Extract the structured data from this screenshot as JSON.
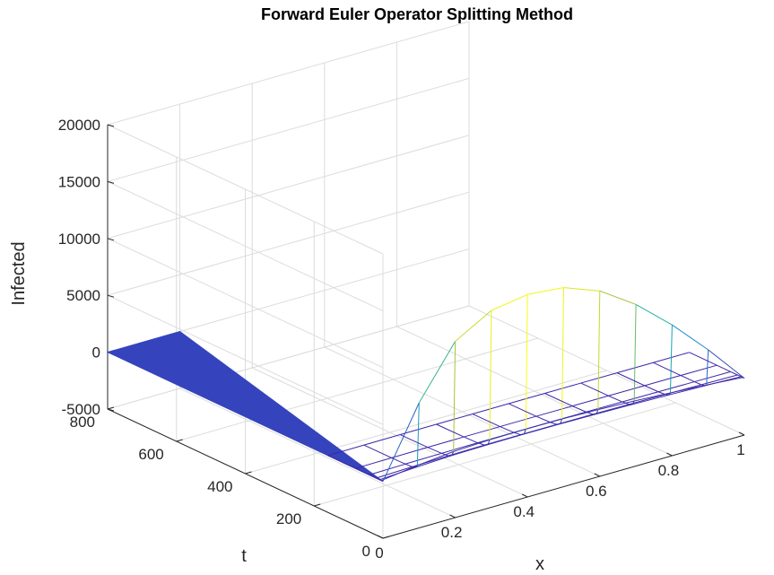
{
  "chart_data": {
    "type": "surface3d",
    "title": "Forward Euler Operator Splitting Method",
    "xlabel": "x",
    "ylabel": "t",
    "zlabel": "Infected",
    "xlim": [
      0,
      1
    ],
    "ylim": [
      0,
      800
    ],
    "zlim": [
      -5000,
      20000
    ],
    "x_ticks": [
      0,
      0.2,
      0.4,
      0.6,
      0.8,
      1
    ],
    "x_tick_labels": [
      "0",
      "0.2",
      "0.4",
      "0.6",
      "0.8",
      "1"
    ],
    "y_ticks": [
      0,
      200,
      400,
      600,
      800
    ],
    "y_tick_labels": [
      "0",
      "200",
      "400",
      "600",
      "800"
    ],
    "z_ticks": [
      -5000,
      0,
      5000,
      10000,
      15000,
      20000
    ],
    "z_tick_labels": [
      "-5000",
      "0",
      "5000",
      "10000",
      "15000",
      "20000"
    ],
    "grid": true,
    "colormap": "parula",
    "flat_region": {
      "description_free": true,
      "corners": [
        {
          "x": 0,
          "t": 0,
          "z": 0
        },
        {
          "x": 0,
          "t": 800,
          "z": 0
        },
        {
          "x": 0.2,
          "t": 800,
          "z": 0
        }
      ],
      "color": "#3544bd"
    },
    "x_grid": [
      0,
      0.1,
      0.2,
      0.3,
      0.4,
      0.5,
      0.6,
      0.7,
      0.8,
      0.9,
      1.0
    ],
    "t_rows": [
      0,
      5,
      10,
      20,
      40,
      80,
      160
    ],
    "peak_values": [
      0,
      6000,
      10500,
      12300,
      12800,
      12500,
      11300,
      9200,
      6500,
      3400,
      0
    ],
    "row_scale": [
      1.0,
      0.07,
      0.03,
      0.015,
      0.008,
      0.004,
      0.002
    ]
  },
  "colors": {
    "low": "#3e26a8",
    "mid": "#17b3a6",
    "high": "#f9fb15",
    "flat": "#3544bd"
  }
}
